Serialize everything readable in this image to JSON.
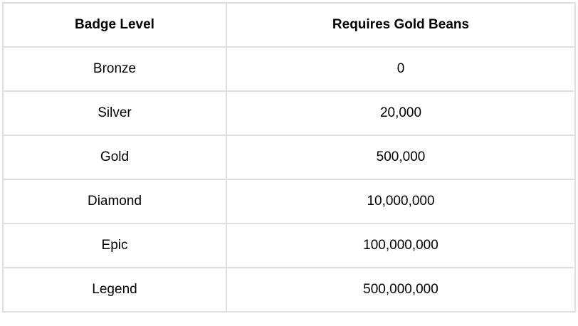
{
  "table": {
    "headers": [
      "Badge Level",
      "Requires Gold Beans"
    ],
    "rows": [
      [
        "Bronze",
        "0"
      ],
      [
        "Silver",
        "20,000"
      ],
      [
        "Gold",
        "500,000"
      ],
      [
        "Diamond",
        "10,000,000"
      ],
      [
        "Epic",
        "100,000,000"
      ],
      [
        "Legend",
        "500,000,000"
      ]
    ]
  }
}
